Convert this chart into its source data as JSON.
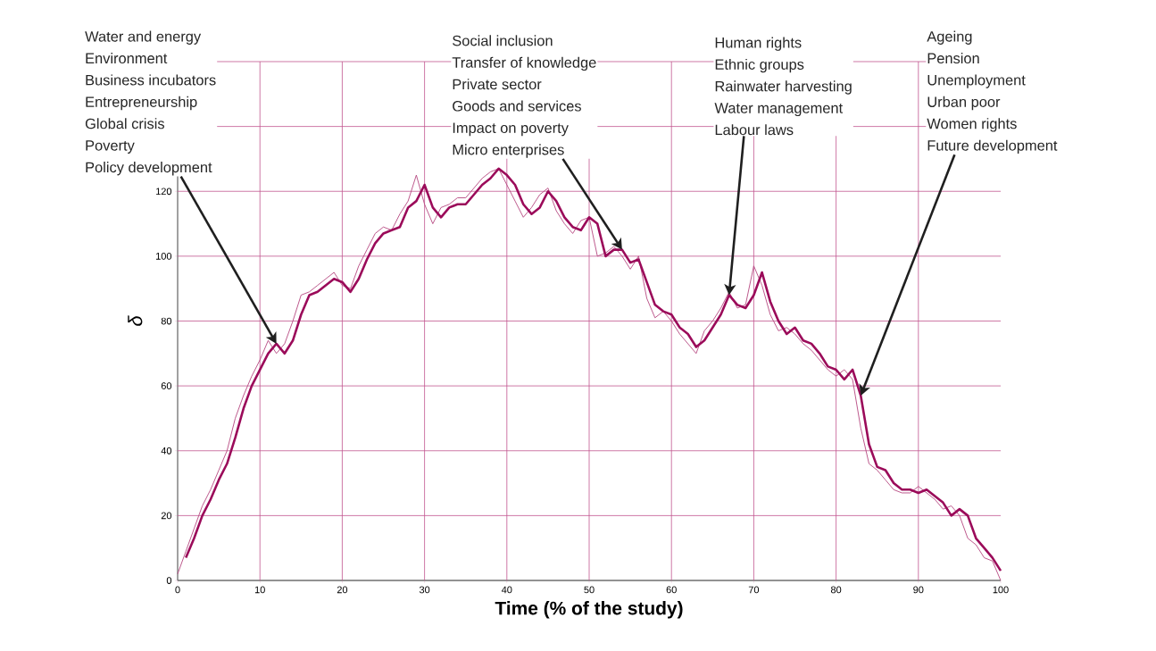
{
  "chart_data": {
    "type": "line",
    "xlabel": "Time (% of the study)",
    "ylabel": "δ",
    "xlim": [
      0,
      100
    ],
    "ylim": [
      0,
      160
    ],
    "xticks": [
      0,
      10,
      20,
      30,
      40,
      50,
      60,
      70,
      80,
      90,
      100
    ],
    "yticks": [
      0,
      20,
      40,
      60,
      80,
      100,
      120,
      {
        "value": 140,
        "label": null
      },
      {
        "value": 160,
        "label": null
      }
    ],
    "grid": true,
    "series": [
      {
        "color": "#b5477f",
        "x": [
          0,
          1,
          2,
          3,
          4,
          5,
          6,
          7,
          8,
          9,
          10,
          11,
          12,
          13,
          14,
          15,
          16,
          17,
          18,
          19,
          20,
          21,
          22,
          23,
          24,
          25,
          26,
          27,
          28,
          29,
          30,
          31,
          32,
          33,
          34,
          35,
          36,
          37,
          38,
          39,
          40,
          41,
          42,
          43,
          44,
          45,
          46,
          47,
          48,
          49,
          50,
          51,
          52,
          53,
          54,
          55,
          56,
          57,
          58,
          59,
          60,
          61,
          62,
          63,
          64,
          65,
          66,
          67,
          68,
          69,
          70,
          71,
          72,
          73,
          74,
          75,
          76,
          77,
          78,
          79,
          80,
          81,
          82,
          83,
          84,
          85,
          86,
          87,
          88,
          89,
          90,
          91,
          92,
          93,
          94,
          95,
          96,
          97,
          98,
          99,
          100
        ],
        "values": [
          2,
          9,
          16,
          23,
          28,
          34,
          40,
          50,
          57,
          63,
          68,
          74,
          70,
          73,
          80,
          88,
          89,
          91,
          93,
          95,
          91,
          90,
          97,
          102,
          107,
          109,
          108,
          113,
          117,
          125,
          116,
          110,
          115,
          116,
          118,
          118,
          121,
          124,
          126,
          127,
          122,
          117,
          112,
          115,
          119,
          121,
          114,
          110,
          107,
          111,
          112,
          100,
          101,
          103,
          100,
          96,
          100,
          87,
          81,
          83,
          80,
          76,
          73,
          70,
          77,
          80,
          84,
          89,
          84,
          85,
          97,
          91,
          82,
          77,
          78,
          76,
          73,
          71,
          68,
          65,
          63,
          65,
          62,
          47,
          36,
          34,
          31,
          28,
          27,
          27,
          29,
          27,
          25,
          22,
          23,
          20,
          13,
          11,
          7,
          6,
          0
        ]
      },
      {
        "color": "#9b0b5a",
        "x": [
          1,
          2,
          3,
          4,
          5,
          6,
          7,
          8,
          9,
          10,
          11,
          12,
          13,
          14,
          15,
          16,
          17,
          18,
          19,
          20,
          21,
          22,
          23,
          24,
          25,
          26,
          27,
          28,
          29,
          30,
          31,
          32,
          33,
          34,
          35,
          36,
          37,
          38,
          39,
          40,
          41,
          42,
          43,
          44,
          45,
          46,
          47,
          48,
          49,
          50,
          51,
          52,
          53,
          54,
          55,
          56,
          57,
          58,
          59,
          60,
          61,
          62,
          63,
          64,
          65,
          66,
          67,
          68,
          69,
          70,
          71,
          72,
          73,
          74,
          75,
          76,
          77,
          78,
          79,
          80,
          81,
          82,
          83,
          84,
          85,
          86,
          87,
          88,
          89,
          90,
          91,
          92,
          93,
          94,
          95,
          96,
          97,
          98,
          99,
          100
        ],
        "values": [
          7,
          13,
          20,
          25,
          31,
          36,
          44,
          53,
          60,
          65,
          70,
          73,
          70,
          74,
          82,
          88,
          89,
          91,
          93,
          92,
          89,
          93,
          99,
          104,
          107,
          108,
          109,
          115,
          117,
          122,
          115,
          112,
          115,
          116,
          116,
          119,
          122,
          124,
          127,
          125,
          122,
          116,
          113,
          115,
          120,
          117,
          112,
          109,
          108,
          112,
          110,
          100,
          102,
          102,
          98,
          99,
          92,
          85,
          83,
          82,
          78,
          76,
          72,
          74,
          78,
          82,
          88,
          85,
          84,
          88,
          95,
          86,
          80,
          76,
          78,
          74,
          73,
          70,
          66,
          65,
          62,
          65,
          57,
          42,
          35,
          34,
          30,
          28,
          28,
          27,
          28,
          26,
          24,
          20,
          22,
          20,
          13,
          10,
          7,
          3
        ]
      }
    ],
    "annotations": [
      "Water and energy",
      "Environment",
      "Business incubators",
      "Entrepreneurship",
      "Global crisis",
      "Poverty",
      {
        "text": "Policy development",
        "x": 12,
        "y": 73
      },
      "Social inclusion",
      "Transfer of knowledge",
      "Private sector",
      "Goods and services",
      "Impact on poverty",
      {
        "text": "Micro enterprises",
        "x": 54,
        "y": 102
      },
      "Human rights",
      "Ethnic groups",
      "Rainwater harvesting",
      "Water management",
      {
        "text": "Labour laws",
        "x": 67,
        "y": 88
      },
      "Ageing",
      "Pension",
      "Unemployment",
      "Urban poor",
      "Women rights",
      {
        "text": "Future development",
        "x": 83,
        "y": 57
      }
    ]
  }
}
